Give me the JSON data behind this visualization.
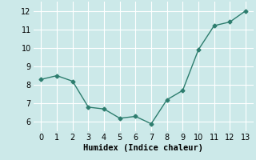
{
  "x": [
    0,
    1,
    2,
    3,
    4,
    5,
    6,
    7,
    8,
    9,
    10,
    11,
    12,
    13
  ],
  "y": [
    8.3,
    8.5,
    8.2,
    6.8,
    6.7,
    6.2,
    6.3,
    5.9,
    7.2,
    7.7,
    9.9,
    11.2,
    11.4,
    12.0
  ],
  "line_color": "#2d7d6e",
  "marker": "D",
  "marker_size": 2.5,
  "bg_color": "#cce9e9",
  "grid_color": "#ffffff",
  "xlabel": "Humidex (Indice chaleur)",
  "xlabel_fontsize": 7.5,
  "tick_fontsize": 7,
  "ylim": [
    5.5,
    12.5
  ],
  "xlim": [
    -0.5,
    13.5
  ],
  "yticks": [
    6,
    7,
    8,
    9,
    10,
    11,
    12
  ],
  "xticks": [
    0,
    1,
    2,
    3,
    4,
    5,
    6,
    7,
    8,
    9,
    10,
    11,
    12,
    13
  ]
}
